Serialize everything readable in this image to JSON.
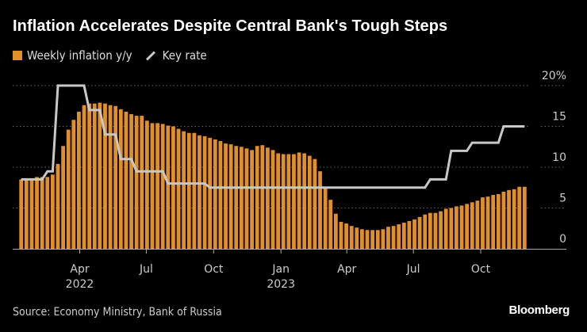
{
  "title": "Inflation Accelerates Despite Central Bank's Tough Steps",
  "source": "Source: Economy Ministry, Bank of Russia",
  "logo": "Bloomberg",
  "chart_data": {
    "type": "bar+line",
    "legend_placement": "top-left",
    "grid": true,
    "colors": {
      "bars": "#e08f2b",
      "line": "#c8c8c8",
      "grid": "#666666"
    },
    "ylim": [
      0,
      20
    ],
    "y_ticks": [
      {
        "value": 0,
        "label": "0"
      },
      {
        "value": 5,
        "label": "5"
      },
      {
        "value": 10,
        "label": "10"
      },
      {
        "value": 15,
        "label": "15"
      },
      {
        "value": 20,
        "label": "20%"
      }
    ],
    "x_ticks": [
      {
        "date": "2022-04-01",
        "label": "Apr",
        "sub": "2022"
      },
      {
        "date": "2022-07-01",
        "label": "Jul",
        "sub": ""
      },
      {
        "date": "2022-10-01",
        "label": "Oct",
        "sub": ""
      },
      {
        "date": "2023-01-01",
        "label": "Jan",
        "sub": "2023"
      },
      {
        "date": "2023-04-01",
        "label": "Apr",
        "sub": ""
      },
      {
        "date": "2023-07-01",
        "label": "Jul",
        "sub": ""
      },
      {
        "date": "2023-10-01",
        "label": "Oct",
        "sub": ""
      }
    ],
    "xlim": [
      "2022-01-01",
      "2023-12-31"
    ],
    "series": [
      {
        "name": "Weekly inflation y/y",
        "type": "bar",
        "first_date": "2022-01-11",
        "last_date": "2023-11-30",
        "values": [
          8.5,
          8.5,
          8.5,
          8.8,
          8.8,
          8.8,
          9.1,
          10.4,
          12.6,
          14.6,
          15.8,
          16.8,
          17.6,
          17.8,
          17.8,
          17.9,
          17.8,
          17.6,
          17.5,
          17.1,
          16.8,
          16.5,
          16.3,
          16.3,
          15.7,
          15.4,
          15.4,
          15.3,
          15.1,
          15.0,
          14.7,
          14.4,
          14.2,
          14.2,
          13.9,
          13.8,
          13.6,
          13.4,
          13.2,
          12.9,
          12.8,
          12.6,
          12.5,
          12.3,
          12.1,
          12.6,
          12.7,
          12.4,
          12.1,
          11.7,
          11.6,
          11.6,
          11.6,
          11.8,
          11.7,
          11.4,
          11.0,
          9.5,
          7.4,
          6.0,
          4.3,
          3.3,
          3.1,
          2.8,
          2.6,
          2.4,
          2.3,
          2.3,
          2.3,
          2.4,
          2.7,
          2.8,
          3.0,
          3.2,
          3.4,
          3.6,
          3.9,
          4.2,
          4.4,
          4.4,
          4.6,
          4.9,
          5.0,
          5.2,
          5.3,
          5.5,
          5.7,
          5.9,
          6.3,
          6.4,
          6.6,
          6.7,
          7.0,
          7.2,
          7.3,
          7.6,
          7.6
        ]
      },
      {
        "name": "Key rate",
        "type": "step-line",
        "changes": [
          {
            "date": "2022-01-01",
            "value": 8.5
          },
          {
            "date": "2022-02-14",
            "value": 9.5
          },
          {
            "date": "2022-02-28",
            "value": 20
          },
          {
            "date": "2022-04-11",
            "value": 17
          },
          {
            "date": "2022-05-04",
            "value": 14
          },
          {
            "date": "2022-05-27",
            "value": 11
          },
          {
            "date": "2022-06-14",
            "value": 9.5
          },
          {
            "date": "2022-07-25",
            "value": 8
          },
          {
            "date": "2022-09-19",
            "value": 7.5
          },
          {
            "date": "2023-07-24",
            "value": 8.5
          },
          {
            "date": "2023-08-15",
            "value": 12
          },
          {
            "date": "2023-09-18",
            "value": 13
          },
          {
            "date": "2023-10-30",
            "value": 15
          }
        ]
      }
    ]
  }
}
